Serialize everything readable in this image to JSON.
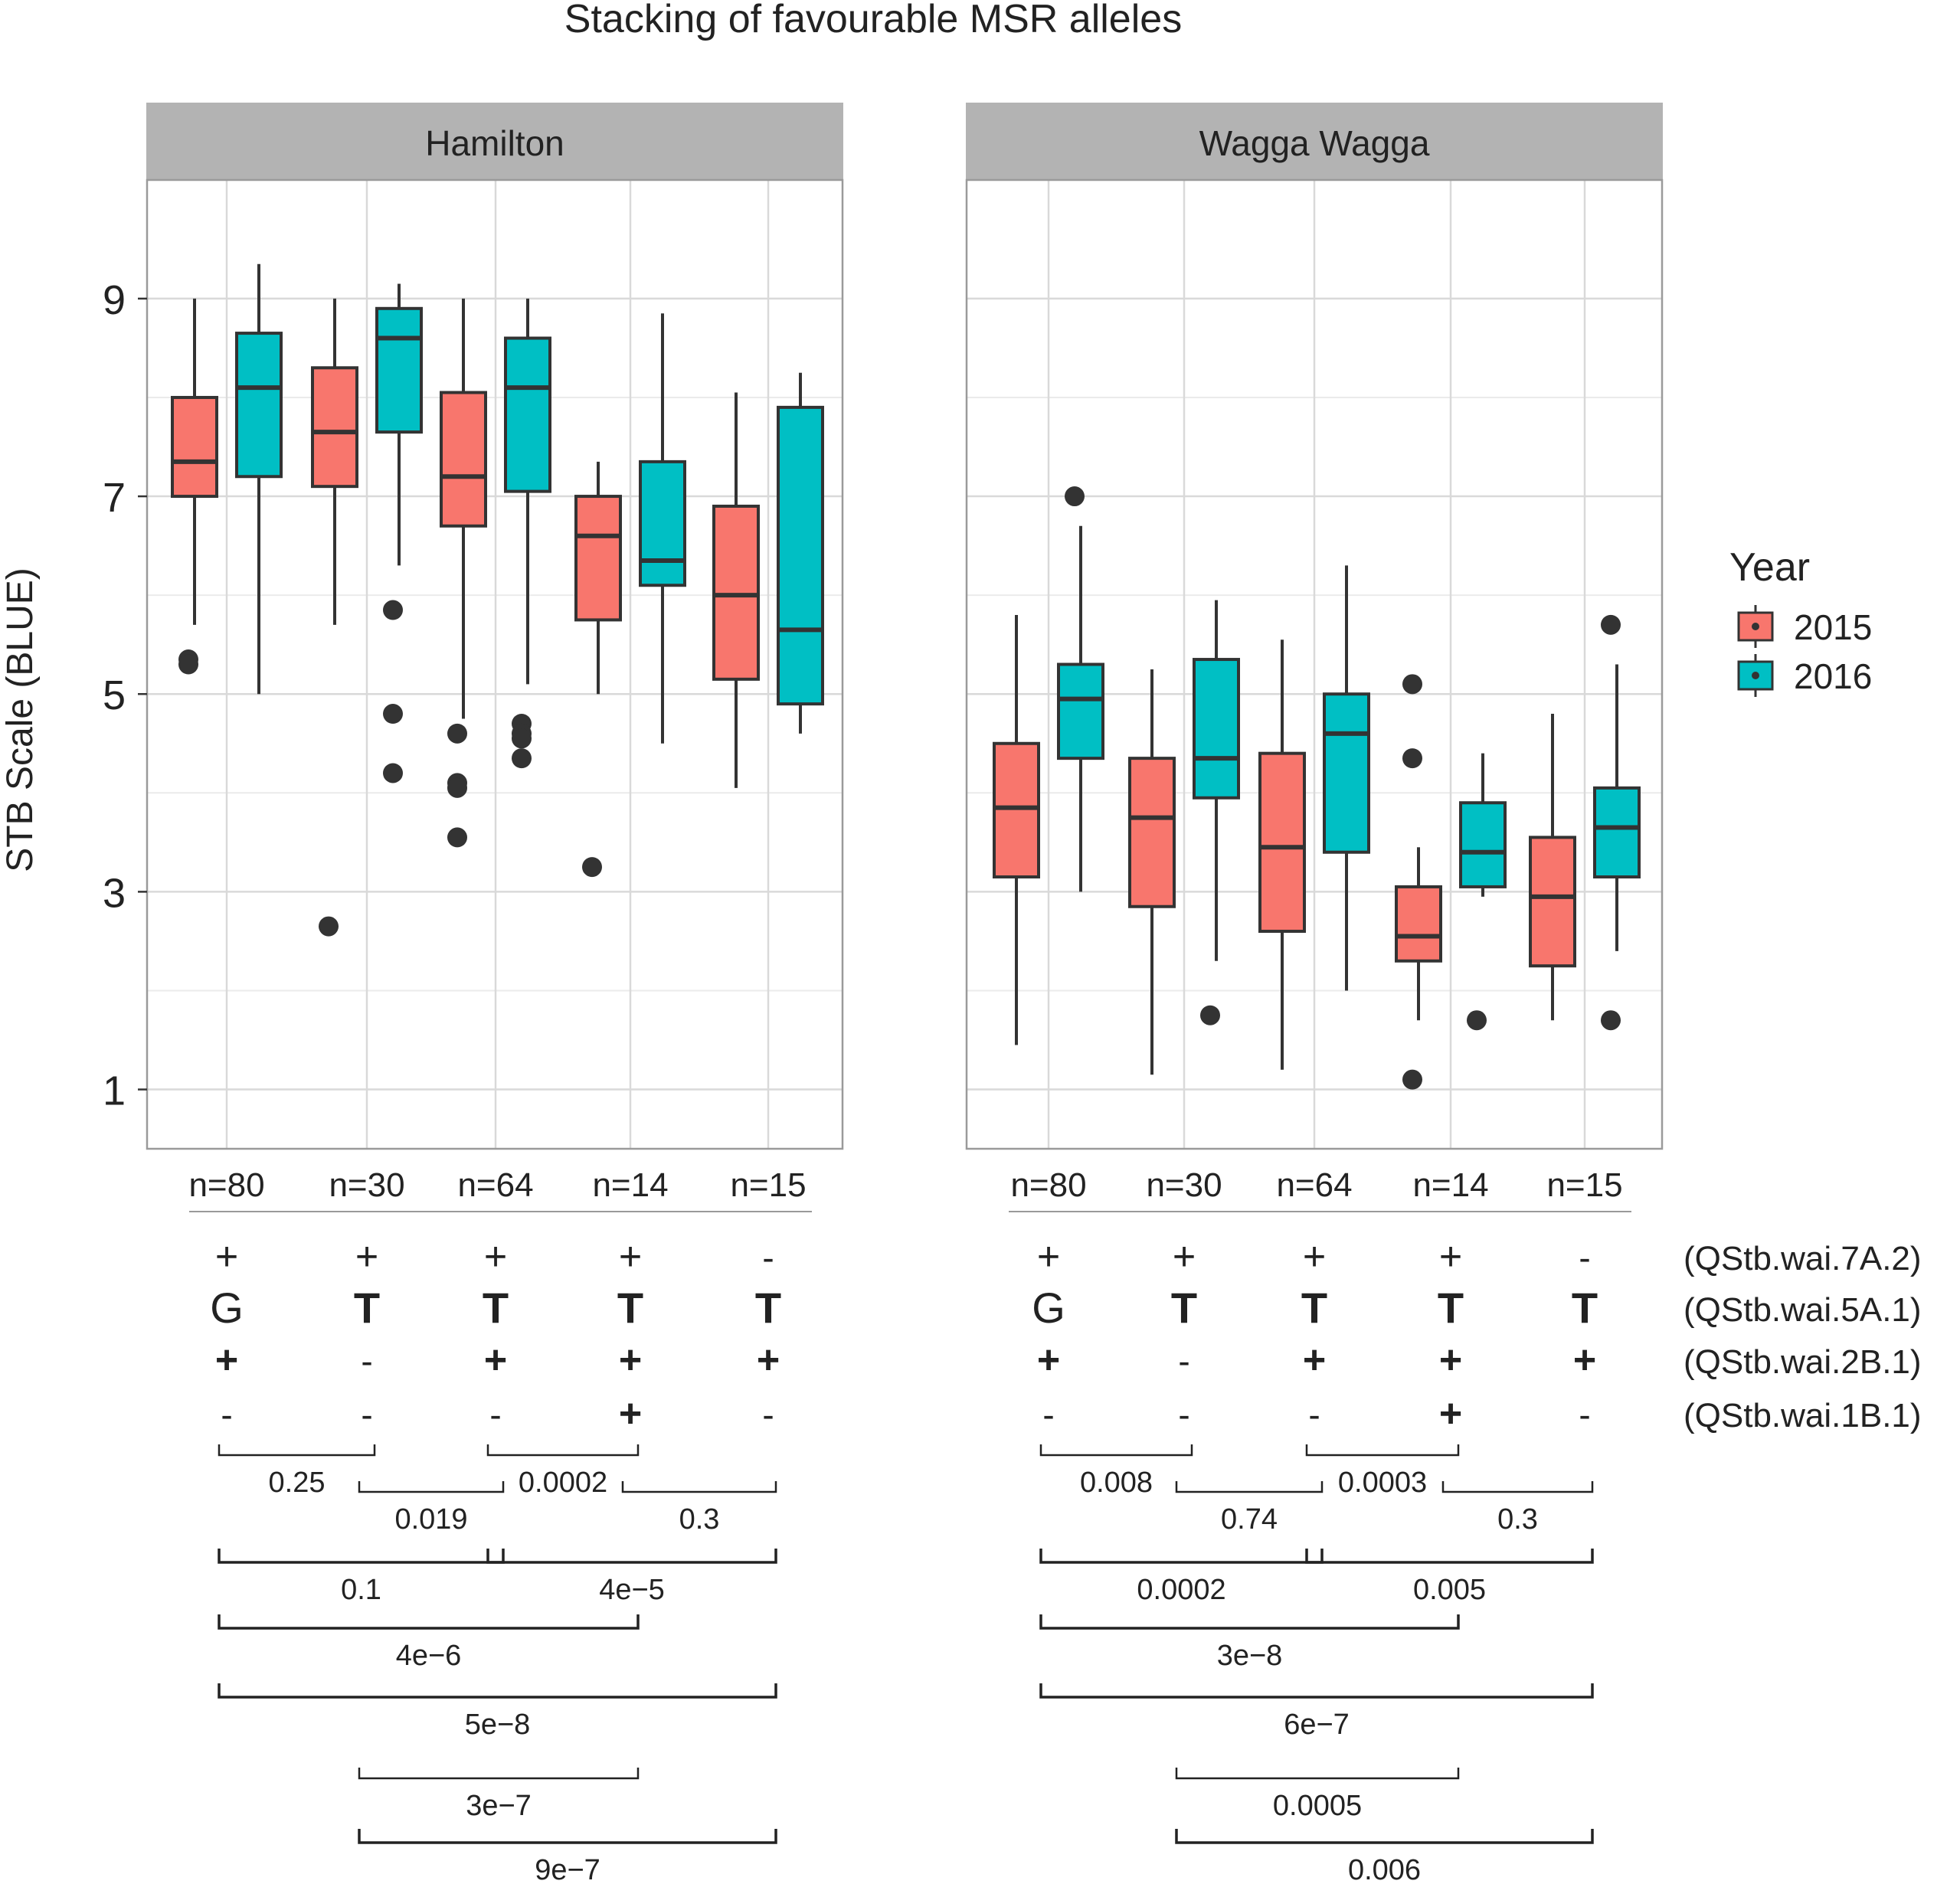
{
  "chart_data": {
    "type": "boxplot",
    "title": "Stacking of favourable MSR alleles",
    "ylabel": "STB Scale (BLUE)",
    "ylim": [
      0.4,
      10.2
    ],
    "yticks": [
      "1",
      "3",
      "5",
      "7",
      "9"
    ],
    "legend": {
      "title": "Year",
      "position": "right",
      "entries": [
        {
          "label": "2015",
          "color": "#F8766D"
        },
        {
          "label": "2016",
          "color": "#00BFC4"
        }
      ]
    },
    "groups": [
      "n=80",
      "n=30",
      "n=64",
      "n=14",
      "n=15"
    ],
    "markers": {
      "rows": [
        {
          "name": "(QStb.wai.7A.2)",
          "values": [
            "+",
            "+",
            "+",
            "+",
            "-"
          ]
        },
        {
          "name": "(QStb.wai.5A.1)",
          "values": [
            "G",
            "T",
            "T",
            "T",
            "T"
          ]
        },
        {
          "name": "(QStb.wai.2B.1)",
          "values": [
            "+",
            "-",
            "+",
            "+",
            "+"
          ]
        },
        {
          "name": "(QStb.wai.1B.1)",
          "values": [
            "-",
            "-",
            "-",
            "+",
            "-"
          ]
        }
      ]
    },
    "panels": [
      {
        "name": "Hamilton",
        "series": [
          {
            "year": "2015",
            "boxes": [
              {
                "q1": 7.0,
                "median": 7.35,
                "q3": 8.0,
                "lower": 5.7,
                "upper": 9.0,
                "outliers": [
                  5.35,
                  5.3
                ]
              },
              {
                "q1": 7.1,
                "median": 7.65,
                "q3": 8.3,
                "lower": 5.7,
                "upper": 9.0,
                "outliers": [
                  2.65
                ]
              },
              {
                "q1": 6.7,
                "median": 7.2,
                "q3": 8.05,
                "lower": 4.75,
                "upper": 9.0,
                "outliers": [
                  4.6,
                  4.1,
                  4.05,
                  3.55
                ]
              },
              {
                "q1": 5.75,
                "median": 6.6,
                "q3": 7.0,
                "lower": 5.0,
                "upper": 7.35,
                "outliers": [
                  3.25
                ]
              },
              {
                "q1": 5.15,
                "median": 6.0,
                "q3": 6.9,
                "lower": 4.05,
                "upper": 8.05,
                "outliers": []
              }
            ]
          },
          {
            "year": "2016",
            "boxes": [
              {
                "q1": 7.2,
                "median": 8.1,
                "q3": 8.65,
                "lower": 5.0,
                "upper": 9.35,
                "outliers": []
              },
              {
                "q1": 7.65,
                "median": 8.6,
                "q3": 8.9,
                "lower": 6.3,
                "upper": 9.15,
                "outliers": [
                  5.85,
                  4.8,
                  4.2
                ]
              },
              {
                "q1": 7.05,
                "median": 8.1,
                "q3": 8.6,
                "lower": 5.1,
                "upper": 9.0,
                "outliers": [
                  4.7,
                  4.6,
                  4.55,
                  4.35
                ]
              },
              {
                "q1": 6.1,
                "median": 6.35,
                "q3": 7.35,
                "lower": 4.5,
                "upper": 8.85,
                "outliers": []
              },
              {
                "q1": 4.9,
                "median": 5.65,
                "q3": 7.9,
                "lower": 4.6,
                "upper": 8.25,
                "outliers": []
              }
            ]
          }
        ],
        "comparisons": [
          {
            "from": 1,
            "to": 2,
            "p": "0.25",
            "tier": 0
          },
          {
            "from": 2,
            "to": 3,
            "p": "0.019",
            "tier": 1
          },
          {
            "from": 3,
            "to": 4,
            "p": "0.0002",
            "tier": 0
          },
          {
            "from": 4,
            "to": 5,
            "p": "0.3",
            "tier": 1
          },
          {
            "from": 1,
            "to": 3,
            "p": "0.1",
            "tier": 2
          },
          {
            "from": 3,
            "to": 5,
            "p": "4e−5",
            "tier": 2
          },
          {
            "from": 1,
            "to": 4,
            "p": "4e−6",
            "tier": 3
          },
          {
            "from": 1,
            "to": 5,
            "p": "5e−8",
            "tier": 4
          },
          {
            "from": 2,
            "to": 4,
            "p": "3e−7",
            "tier": 5
          },
          {
            "from": 2,
            "to": 5,
            "p": "9e−7",
            "tier": 6
          }
        ]
      },
      {
        "name": "Wagga Wagga",
        "series": [
          {
            "year": "2015",
            "boxes": [
              {
                "q1": 3.15,
                "median": 3.85,
                "q3": 4.5,
                "lower": 1.45,
                "upper": 5.8,
                "outliers": []
              },
              {
                "q1": 2.85,
                "median": 3.75,
                "q3": 4.35,
                "lower": 1.15,
                "upper": 5.25,
                "outliers": []
              },
              {
                "q1": 2.6,
                "median": 3.45,
                "q3": 4.4,
                "lower": 1.2,
                "upper": 5.55,
                "outliers": []
              },
              {
                "q1": 2.3,
                "median": 2.55,
                "q3": 3.05,
                "lower": 1.7,
                "upper": 3.45,
                "outliers": [
                  5.1,
                  4.35,
                  1.1
                ]
              },
              {
                "q1": 2.25,
                "median": 2.95,
                "q3": 3.55,
                "lower": 1.7,
                "upper": 4.8,
                "outliers": []
              }
            ]
          },
          {
            "year": "2016",
            "boxes": [
              {
                "q1": 4.35,
                "median": 4.95,
                "q3": 5.3,
                "lower": 3.0,
                "upper": 6.7,
                "outliers": [
                  7.0
                ]
              },
              {
                "q1": 3.95,
                "median": 4.35,
                "q3": 5.35,
                "lower": 2.3,
                "upper": 5.95,
                "outliers": [
                  1.75
                ]
              },
              {
                "q1": 3.4,
                "median": 4.6,
                "q3": 5.0,
                "lower": 2.0,
                "upper": 6.3,
                "outliers": []
              },
              {
                "q1": 3.05,
                "median": 3.4,
                "q3": 3.9,
                "lower": 2.95,
                "upper": 4.4,
                "outliers": [
                  1.7
                ]
              },
              {
                "q1": 3.15,
                "median": 3.65,
                "q3": 4.05,
                "lower": 2.4,
                "upper": 5.3,
                "outliers": [
                  5.7,
                  1.7
                ]
              }
            ]
          }
        ],
        "comparisons": [
          {
            "from": 1,
            "to": 2,
            "p": "0.008",
            "tier": 0
          },
          {
            "from": 2,
            "to": 3,
            "p": "0.74",
            "tier": 1
          },
          {
            "from": 3,
            "to": 4,
            "p": "0.0003",
            "tier": 0
          },
          {
            "from": 4,
            "to": 5,
            "p": "0.3",
            "tier": 1
          },
          {
            "from": 1,
            "to": 3,
            "p": "0.0002",
            "tier": 2
          },
          {
            "from": 3,
            "to": 5,
            "p": "0.005",
            "tier": 2
          },
          {
            "from": 1,
            "to": 4,
            "p": "3e−8",
            "tier": 3
          },
          {
            "from": 1,
            "to": 5,
            "p": "6e−7",
            "tier": 4
          },
          {
            "from": 2,
            "to": 4,
            "p": "0.0005",
            "tier": 5
          },
          {
            "from": 2,
            "to": 5,
            "p": "0.006",
            "tier": 6
          }
        ]
      }
    ]
  }
}
